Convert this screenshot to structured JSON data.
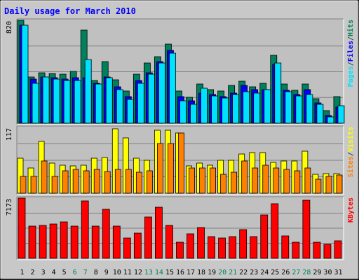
{
  "chart_data": {
    "type": "bar",
    "title": "Daily usage for March 2010",
    "categories": [
      "1",
      "2",
      "3",
      "4",
      "5",
      "6",
      "7",
      "8",
      "9",
      "10",
      "11",
      "12",
      "13",
      "14",
      "15",
      "16",
      "17",
      "18",
      "19",
      "20",
      "21",
      "22",
      "23",
      "24",
      "25",
      "26",
      "27",
      "28",
      "29",
      "30",
      "31"
    ],
    "weekend_days": [
      "6",
      "7",
      "13",
      "14",
      "20",
      "21",
      "27",
      "28"
    ],
    "colors": {
      "hits": "#00805c",
      "files": "#0000ff",
      "pages": "#00e0ff",
      "visits": "#ffff00",
      "sites": "#ff8000",
      "kbytes": "#ff0000",
      "panel": "#c0c0c0",
      "grid": "#808080",
      "weekend_label": "#00805c"
    },
    "panels": [
      {
        "id": "hits",
        "max_label": "820",
        "ylim": [
          0,
          820
        ],
        "legend": [
          {
            "label": "Pages",
            "color": "#00e0ff"
          },
          {
            "label": "/",
            "color": "#404040"
          },
          {
            "label": "Files",
            "color": "#0000ff"
          },
          {
            "label": "/",
            "color": "#404040"
          },
          {
            "label": "Hits",
            "color": "#00805c"
          }
        ],
        "series": [
          {
            "name": "Hits",
            "values": [
              820,
              370,
              400,
              395,
              390,
              410,
              740,
              340,
              490,
              345,
              255,
              390,
              480,
              530,
              630,
              255,
              205,
              315,
              265,
              255,
              300,
              335,
              290,
              320,
              540,
              310,
              260,
              310,
              195,
              100,
              210
            ]
          },
          {
            "name": "Files",
            "values": [
              780,
              350,
              370,
              360,
              350,
              360,
              360,
              320,
              370,
              290,
              210,
              340,
              400,
              490,
              580,
              210,
              180,
              240,
              230,
              210,
              240,
              300,
              270,
              270,
              470,
              260,
              230,
              270,
              160,
              60,
              130
            ]
          },
          {
            "name": "Pages",
            "values": [
              780,
              320,
              370,
              350,
              340,
              340,
              510,
              310,
              360,
              270,
              190,
              320,
              390,
              480,
              560,
              180,
              150,
              280,
              220,
              200,
              230,
              250,
              240,
              270,
              480,
              250,
              220,
              230,
              150,
              50,
              140
            ]
          }
        ]
      },
      {
        "id": "visits",
        "max_label": "117",
        "ylim": [
          0,
          117
        ],
        "legend": [
          {
            "label": "Sites",
            "color": "#ff8000"
          },
          {
            "label": "/",
            "color": "#404040"
          },
          {
            "label": "Visits",
            "color": "#ffff00"
          }
        ],
        "series": [
          {
            "name": "Visits",
            "values": [
              62,
              45,
              92,
              54,
              50,
              48,
              50,
              62,
              64,
              114,
              98,
              62,
              58,
              112,
              112,
              107,
              48,
              53,
              50,
              58,
              58,
              70,
              72,
              72,
              55,
              57,
              57,
              75,
              33,
              35,
              35
            ]
          },
          {
            "name": "Sites",
            "values": [
              30,
              30,
              57,
              30,
              40,
              42,
              40,
              42,
              38,
              42,
              42,
              37,
              40,
              88,
              88,
              107,
              45,
              45,
              45,
              33,
              37,
              57,
              45,
              50,
              45,
              42,
              40,
              45,
              25,
              30,
              32
            ]
          }
        ]
      },
      {
        "id": "kbytes",
        "max_label": "7173",
        "ylim": [
          0,
          7173
        ],
        "legend": [
          {
            "label": "KBytes",
            "color": "#ff0000"
          }
        ],
        "series": [
          {
            "name": "KBytes",
            "values": [
              7173,
              3800,
              3900,
              4050,
              4300,
              3850,
              6800,
              3800,
              5800,
              3800,
              2400,
              3000,
              4900,
              6100,
              3900,
              1900,
              2900,
              3700,
              2600,
              2400,
              2600,
              3400,
              2600,
              5200,
              6500,
              2700,
              1900,
              6900,
              1900,
              1700,
              2100
            ]
          }
        ]
      }
    ]
  }
}
